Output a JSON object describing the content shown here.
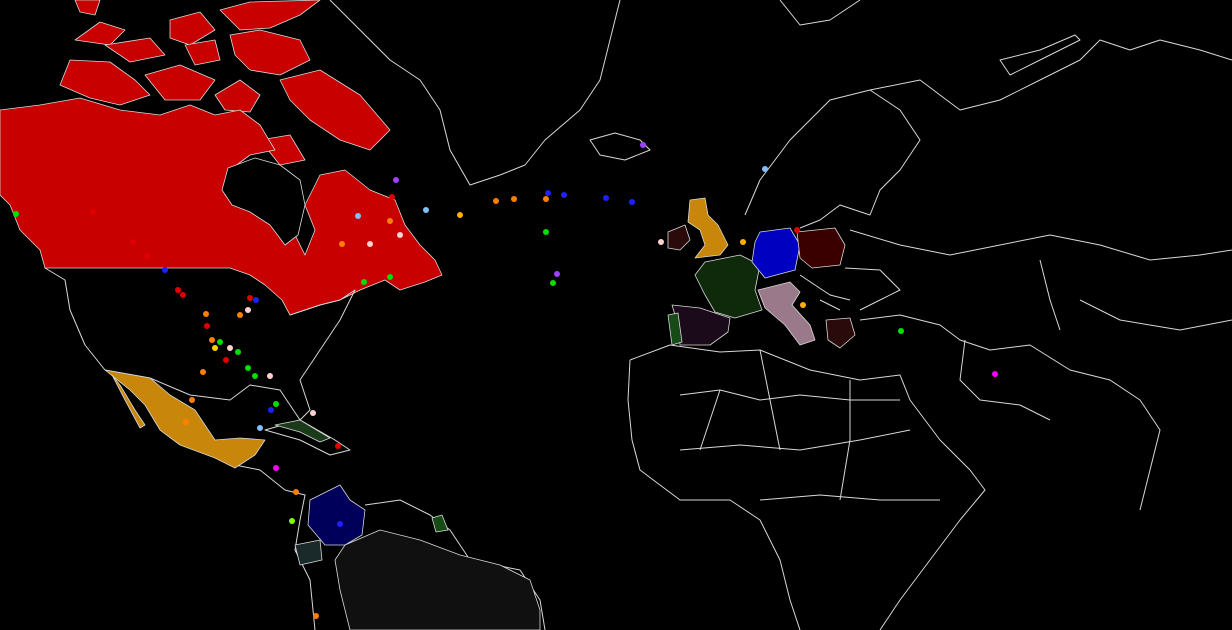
{
  "map": {
    "background": "#000000",
    "border_color": "#d8d8d8"
  }
}
